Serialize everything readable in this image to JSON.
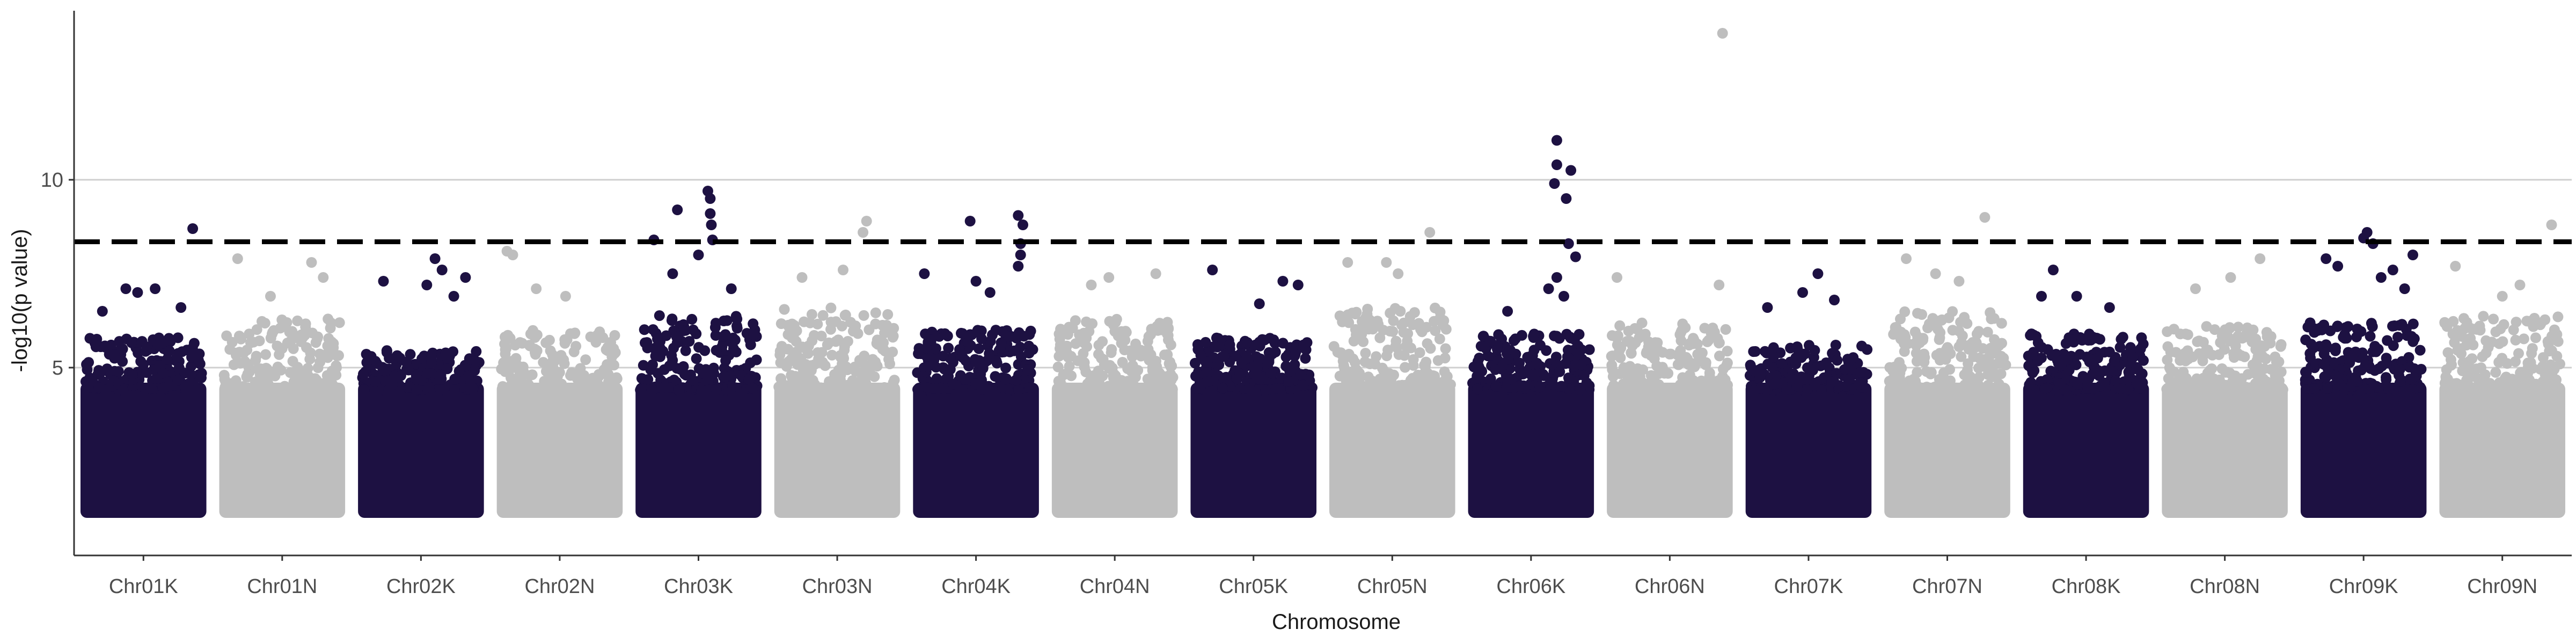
{
  "chart_data": {
    "type": "scatter",
    "subtype": "manhattan",
    "title": "",
    "xlabel": "Chromosome",
    "ylabel": "-log10(p value)",
    "ylim": [
      0,
      14.5
    ],
    "yticks": [
      5,
      10
    ],
    "grid": "horizontal major lines",
    "legend": "none",
    "threshold": 8.35,
    "colors": {
      "odd": "#1d1142",
      "even": "#bebebe",
      "threshold": "#000000",
      "grid": "#cfcfcf",
      "axis": "#333333"
    },
    "categories": [
      "Chr01K",
      "Chr01N",
      "Chr02K",
      "Chr02N",
      "Chr03K",
      "Chr03N",
      "Chr04K",
      "Chr04N",
      "Chr05K",
      "Chr05N",
      "Chr06K",
      "Chr06N",
      "Chr07K",
      "Chr07N",
      "Chr08K",
      "Chr08N",
      "Chr09K",
      "Chr09N"
    ],
    "series": [
      {
        "chromosome": "Chr01K",
        "base_peak": 5.8,
        "top_points": [
          [
            0.92,
            8.7
          ],
          [
            0.35,
            7.1
          ],
          [
            0.45,
            7.0
          ],
          [
            0.6,
            7.1
          ],
          [
            0.82,
            6.6
          ],
          [
            0.15,
            6.5
          ]
        ]
      },
      {
        "chromosome": "Chr01N",
        "base_peak": 6.3,
        "top_points": [
          [
            0.12,
            7.9
          ],
          [
            0.75,
            7.8
          ],
          [
            0.85,
            7.4
          ],
          [
            0.4,
            6.9
          ]
        ]
      },
      {
        "chromosome": "Chr02K",
        "base_peak": 5.5,
        "top_points": [
          [
            0.18,
            7.3
          ],
          [
            0.62,
            7.9
          ],
          [
            0.68,
            7.6
          ],
          [
            0.55,
            7.2
          ],
          [
            0.88,
            7.4
          ],
          [
            0.78,
            6.9
          ]
        ]
      },
      {
        "chromosome": "Chr02N",
        "base_peak": 6.0,
        "top_points": [
          [
            0.05,
            8.1
          ],
          [
            0.1,
            8.0
          ],
          [
            0.3,
            7.1
          ],
          [
            0.55,
            6.9
          ]
        ]
      },
      {
        "chromosome": "Chr03K",
        "base_peak": 6.4,
        "top_points": [
          [
            0.12,
            8.4
          ],
          [
            0.32,
            9.2
          ],
          [
            0.58,
            9.7
          ],
          [
            0.6,
            9.5
          ],
          [
            0.6,
            9.1
          ],
          [
            0.61,
            8.8
          ],
          [
            0.62,
            8.4
          ],
          [
            0.5,
            8.0
          ],
          [
            0.28,
            7.5
          ],
          [
            0.78,
            7.1
          ]
        ]
      },
      {
        "chromosome": "Chr03N",
        "base_peak": 6.6,
        "top_points": [
          [
            0.75,
            8.9
          ],
          [
            0.72,
            8.6
          ],
          [
            0.55,
            7.6
          ],
          [
            0.2,
            7.4
          ]
        ]
      },
      {
        "chromosome": "Chr04K",
        "base_peak": 6.0,
        "top_points": [
          [
            0.06,
            7.5
          ],
          [
            0.45,
            8.9
          ],
          [
            0.86,
            9.05
          ],
          [
            0.9,
            8.8
          ],
          [
            0.88,
            8.3
          ],
          [
            0.88,
            8.0
          ],
          [
            0.5,
            7.3
          ],
          [
            0.62,
            7.0
          ],
          [
            0.86,
            7.7
          ]
        ]
      },
      {
        "chromosome": "Chr04N",
        "base_peak": 6.3,
        "top_points": [
          [
            0.3,
            7.2
          ],
          [
            0.45,
            7.4
          ],
          [
            0.85,
            7.5
          ]
        ]
      },
      {
        "chromosome": "Chr05K",
        "base_peak": 5.8,
        "top_points": [
          [
            0.15,
            7.6
          ],
          [
            0.75,
            7.3
          ],
          [
            0.88,
            7.2
          ],
          [
            0.55,
            6.7
          ]
        ]
      },
      {
        "chromosome": "Chr05N",
        "base_peak": 6.6,
        "top_points": [
          [
            0.82,
            8.6
          ],
          [
            0.45,
            7.8
          ],
          [
            0.12,
            7.8
          ],
          [
            0.55,
            7.5
          ]
        ]
      },
      {
        "chromosome": "Chr06K",
        "base_peak": 5.9,
        "top_points": [
          [
            0.72,
            11.05
          ],
          [
            0.72,
            10.4
          ],
          [
            0.84,
            10.25
          ],
          [
            0.7,
            9.9
          ],
          [
            0.8,
            9.5
          ],
          [
            0.82,
            8.3
          ],
          [
            0.88,
            7.95
          ],
          [
            0.65,
            7.1
          ],
          [
            0.72,
            7.4
          ],
          [
            0.78,
            6.9
          ],
          [
            0.3,
            6.5
          ]
        ]
      },
      {
        "chromosome": "Chr06N",
        "base_peak": 6.2,
        "top_points": [
          [
            0.95,
            13.9
          ],
          [
            0.05,
            7.4
          ],
          [
            0.92,
            7.2
          ]
        ]
      },
      {
        "chromosome": "Chr07K",
        "base_peak": 5.6,
        "top_points": [
          [
            0.58,
            7.5
          ],
          [
            0.45,
            7.0
          ],
          [
            0.72,
            6.8
          ],
          [
            0.15,
            6.6
          ]
        ]
      },
      {
        "chromosome": "Chr07N",
        "base_peak": 6.5,
        "top_points": [
          [
            0.82,
            9.0
          ],
          [
            0.15,
            7.9
          ],
          [
            0.4,
            7.5
          ],
          [
            0.6,
            7.3
          ]
        ]
      },
      {
        "chromosome": "Chr08K",
        "base_peak": 5.9,
        "top_points": [
          [
            0.22,
            7.6
          ],
          [
            0.42,
            6.9
          ],
          [
            0.7,
            6.6
          ],
          [
            0.12,
            6.9
          ]
        ]
      },
      {
        "chromosome": "Chr08N",
        "base_peak": 6.1,
        "top_points": [
          [
            0.55,
            7.4
          ],
          [
            0.8,
            7.9
          ],
          [
            0.25,
            7.1
          ]
        ]
      },
      {
        "chromosome": "Chr09K",
        "base_peak": 6.2,
        "top_points": [
          [
            0.5,
            8.45
          ],
          [
            0.53,
            8.6
          ],
          [
            0.58,
            8.3
          ],
          [
            0.18,
            7.9
          ],
          [
            0.28,
            7.7
          ],
          [
            0.92,
            8.0
          ],
          [
            0.75,
            7.6
          ],
          [
            0.65,
            7.4
          ],
          [
            0.85,
            7.1
          ]
        ]
      },
      {
        "chromosome": "Chr09N",
        "base_peak": 6.4,
        "top_points": [
          [
            0.92,
            8.8
          ],
          [
            0.1,
            7.7
          ],
          [
            0.65,
            7.2
          ],
          [
            0.5,
            6.9
          ]
        ]
      }
    ]
  }
}
